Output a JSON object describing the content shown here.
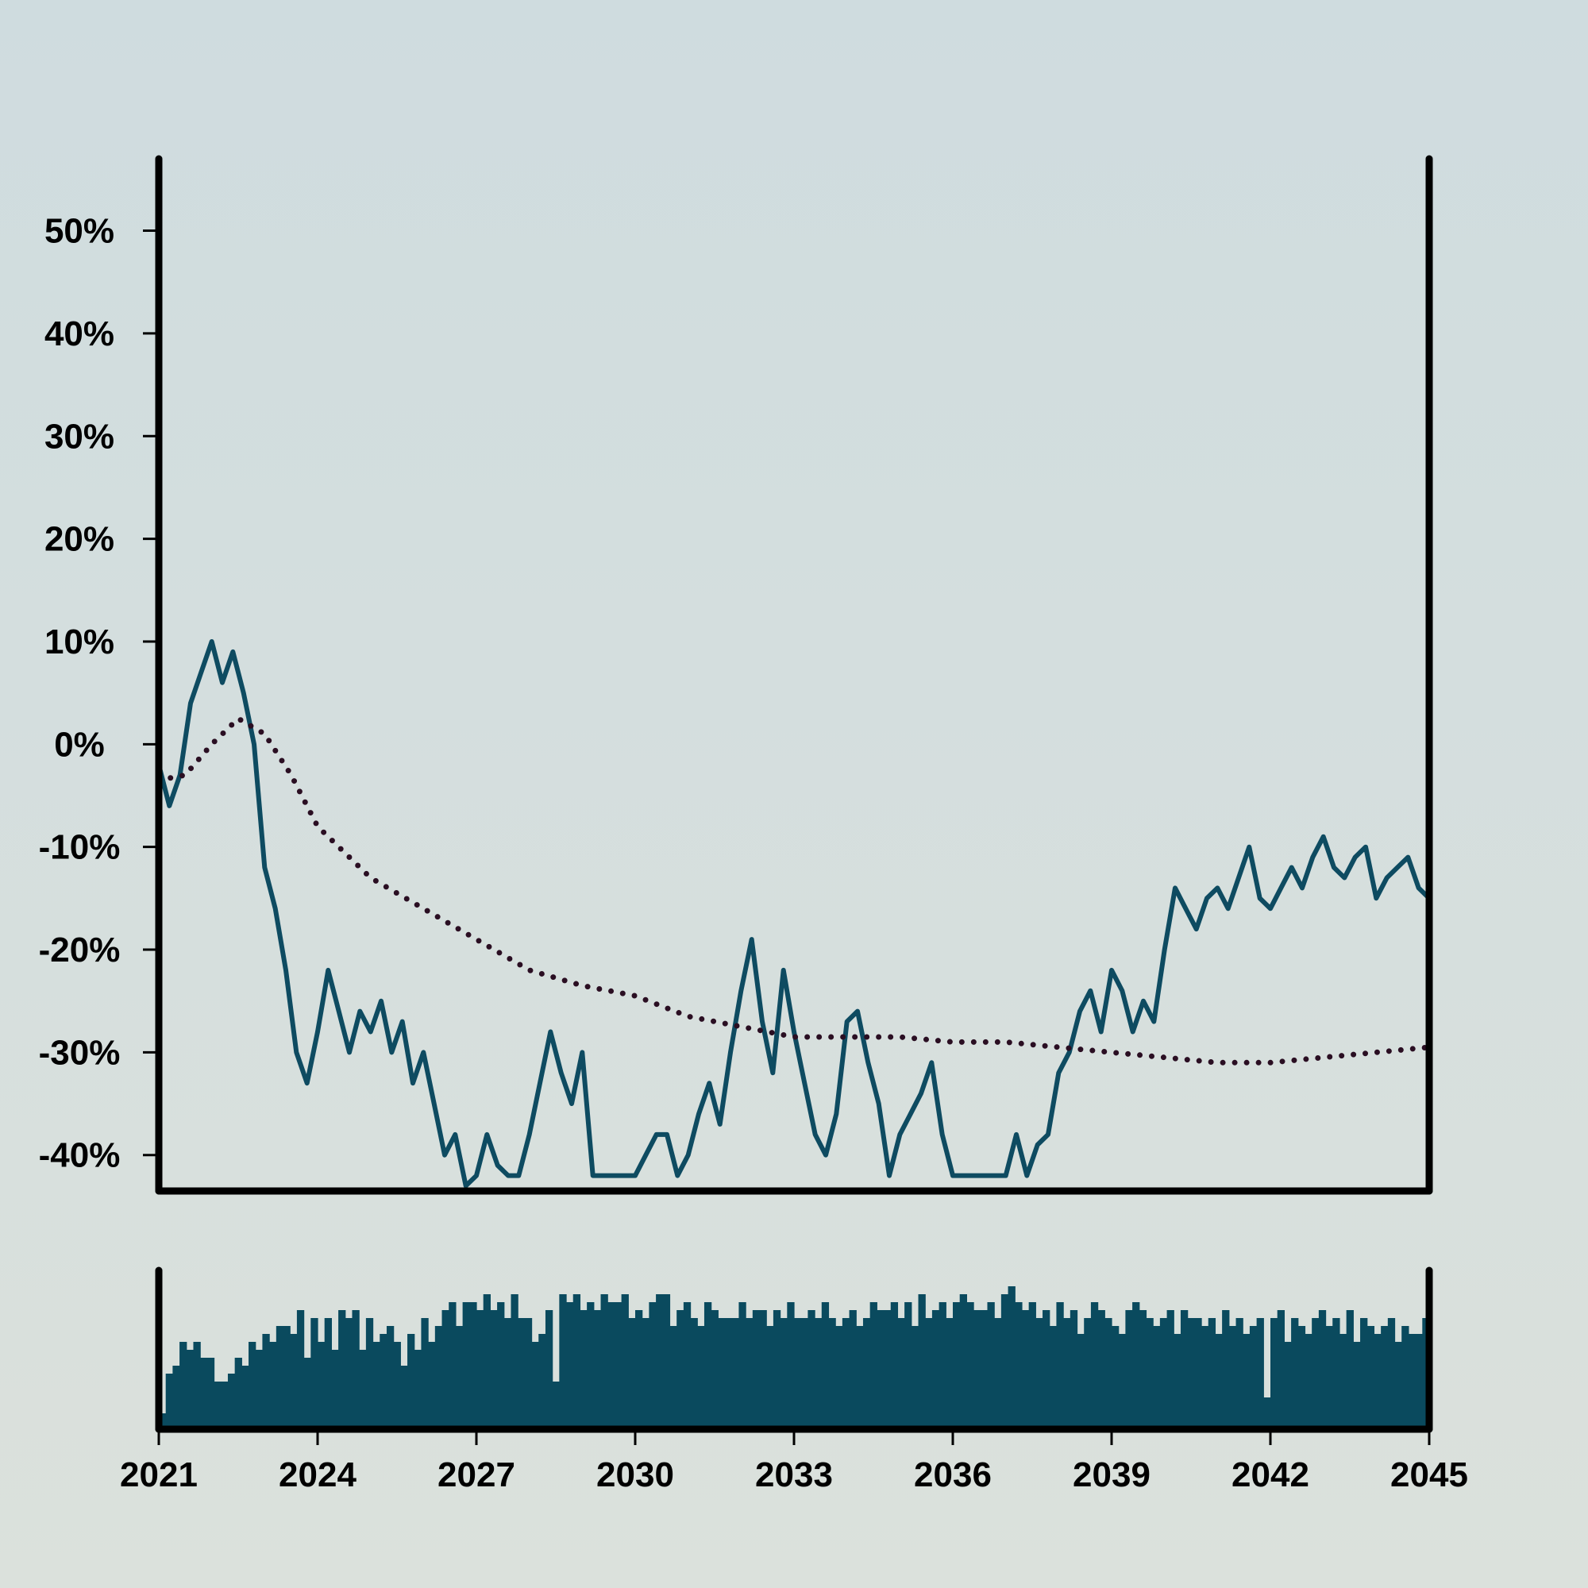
{
  "colors": {
    "background_top": "#cfdcdf",
    "background_bottom": "#dbe1dc",
    "price_line": "#0e4b61",
    "trend_line": "#2a0e22",
    "volume_bars": "#0a4a5e",
    "axis": "#000000"
  },
  "chart_data": [
    {
      "type": "line",
      "title": "",
      "xlabel": "",
      "ylabel": "",
      "x_range": [
        2021,
        2045
      ],
      "ylim": [
        -43.5,
        57
      ],
      "y_unit": "%",
      "x_ticks": [
        "2021",
        "2024",
        "2027",
        "2030",
        "2033",
        "2036",
        "2039",
        "2042",
        "2045"
      ],
      "y_ticks": [
        "50%",
        "40%",
        "30%",
        "20%",
        "10%",
        "0%",
        "-10%",
        "-20%",
        "-30%",
        "-40%"
      ],
      "y_tick_values": [
        50,
        40,
        30,
        20,
        10,
        0,
        -10,
        -20,
        -30,
        -40
      ],
      "grid": false,
      "legend": "none",
      "series": [
        {
          "style": "solid",
          "x": [
            2021.0,
            2021.2,
            2021.4,
            2021.6,
            2021.8,
            2022.0,
            2022.2,
            2022.4,
            2022.6,
            2022.8,
            2023.0,
            2023.2,
            2023.4,
            2023.6,
            2023.8,
            2024.0,
            2024.2,
            2024.4,
            2024.6,
            2024.8,
            2025.0,
            2025.2,
            2025.4,
            2025.6,
            2025.8,
            2026.0,
            2026.2,
            2026.4,
            2026.6,
            2026.8,
            2027.0,
            2027.2,
            2027.4,
            2027.6,
            2027.8,
            2028.0,
            2028.2,
            2028.4,
            2028.6,
            2028.8,
            2029.0,
            2029.2,
            2029.4,
            2029.6,
            2029.8,
            2030.0,
            2030.2,
            2030.4,
            2030.6,
            2030.8,
            2031.0,
            2031.2,
            2031.4,
            2031.6,
            2031.8,
            2032.0,
            2032.2,
            2032.4,
            2032.6,
            2032.8,
            2033.0,
            2033.2,
            2033.4,
            2033.6,
            2033.8,
            2034.0,
            2034.2,
            2034.4,
            2034.6,
            2034.8,
            2035.0,
            2035.2,
            2035.4,
            2035.6,
            2035.8,
            2036.0,
            2036.2,
            2036.4,
            2036.6,
            2036.8,
            2037.0,
            2037.2,
            2037.4,
            2037.6,
            2037.8,
            2038.0,
            2038.2,
            2038.4,
            2038.6,
            2038.8,
            2039.0,
            2039.2,
            2039.4,
            2039.6,
            2039.8,
            2040.0,
            2040.2,
            2040.4,
            2040.6,
            2040.8,
            2041.0,
            2041.2,
            2041.4,
            2041.6,
            2041.8,
            2042.0,
            2042.2,
            2042.4,
            2042.6,
            2042.8,
            2043.0,
            2043.2,
            2043.4,
            2043.6,
            2043.8,
            2044.0,
            2044.2,
            2044.4,
            2044.6,
            2044.8,
            2045.0
          ],
          "values": [
            -2,
            -6,
            -3,
            4,
            7,
            10,
            6,
            9,
            5,
            0,
            -12,
            -16,
            -22,
            -30,
            -33,
            -28,
            -22,
            -26,
            -30,
            -26,
            -28,
            -25,
            -30,
            -27,
            -33,
            -30,
            -35,
            -40,
            -38,
            -43,
            -42,
            -38,
            -41,
            -42,
            -42,
            -38,
            -33,
            -28,
            -32,
            -35,
            -30,
            -42,
            -42,
            -42,
            -42,
            -42,
            -40,
            -38,
            -38,
            -42,
            -40,
            -36,
            -33,
            -37,
            -30,
            -24,
            -19,
            -27,
            -32,
            -22,
            -28,
            -33,
            -38,
            -40,
            -36,
            -27,
            -26,
            -31,
            -35,
            -42,
            -38,
            -36,
            -34,
            -31,
            -38,
            -42,
            -42,
            -42,
            -42,
            -42,
            -42,
            -38,
            -42,
            -39,
            -38,
            -32,
            -30,
            -26,
            -24,
            -28,
            -22,
            -24,
            -28,
            -25,
            -27,
            -20,
            -14,
            -16,
            -18,
            -15,
            -14,
            -16,
            -13,
            -10,
            -15,
            -16,
            -14,
            -12,
            -14,
            -11,
            -9,
            -12,
            -13,
            -11,
            -10,
            -15,
            -13,
            -12,
            -11,
            -14,
            -15
          ],
          "x_clip": true
        },
        {
          "style": "dotted",
          "x": [
            2021.0,
            2021.5,
            2022.0,
            2022.5,
            2023.0,
            2023.5,
            2024.0,
            2025.0,
            2026.0,
            2027.0,
            2028.0,
            2029.0,
            2030.0,
            2031.0,
            2032.0,
            2033.0,
            2034.0,
            2035.0,
            2036.0,
            2037.0,
            2038.0,
            2039.0,
            2040.0,
            2041.0,
            2042.0,
            2043.0,
            2044.0,
            2045.0
          ],
          "values": [
            -3.5,
            -3,
            0,
            2.5,
            1,
            -3,
            -8,
            -13,
            -16,
            -19,
            -22,
            -23.5,
            -24.5,
            -26.5,
            -27.5,
            -28.5,
            -28.5,
            -28.5,
            -29,
            -29,
            -29.5,
            -30,
            -30.5,
            -31,
            -31,
            -30.5,
            -30,
            -29.5
          ]
        }
      ]
    },
    {
      "type": "bar",
      "title": "",
      "xlabel": "",
      "ylabel": "",
      "x_range": [
        2021,
        2045
      ],
      "ylim": [
        0,
        100
      ],
      "values": [
        10,
        35,
        40,
        55,
        50,
        55,
        45,
        45,
        30,
        30,
        35,
        45,
        40,
        55,
        50,
        60,
        55,
        65,
        65,
        60,
        75,
        45,
        70,
        55,
        70,
        50,
        75,
        70,
        75,
        50,
        70,
        55,
        60,
        65,
        55,
        40,
        60,
        50,
        70,
        55,
        65,
        75,
        80,
        65,
        80,
        80,
        75,
        85,
        75,
        80,
        70,
        85,
        70,
        70,
        55,
        60,
        75,
        30,
        85,
        80,
        85,
        75,
        80,
        75,
        85,
        80,
        80,
        85,
        70,
        75,
        70,
        80,
        85,
        85,
        65,
        75,
        80,
        70,
        65,
        80,
        75,
        70,
        70,
        70,
        80,
        70,
        75,
        75,
        65,
        75,
        70,
        80,
        70,
        70,
        75,
        70,
        80,
        70,
        65,
        70,
        75,
        65,
        70,
        80,
        75,
        75,
        80,
        70,
        80,
        65,
        85,
        70,
        75,
        80,
        70,
        80,
        85,
        80,
        75,
        75,
        80,
        70,
        85,
        90,
        80,
        75,
        80,
        70,
        75,
        65,
        80,
        70,
        75,
        60,
        70,
        80,
        75,
        70,
        65,
        60,
        75,
        80,
        75,
        70,
        65,
        70,
        75,
        60,
        75,
        70,
        70,
        65,
        70,
        60,
        75,
        65,
        70,
        60,
        65,
        70,
        20,
        70,
        75,
        55,
        70,
        65,
        60,
        70,
        75,
        65,
        70,
        60,
        75,
        55,
        70,
        65,
        60,
        65,
        70,
        55,
        65,
        60,
        60,
        70
      ]
    }
  ]
}
